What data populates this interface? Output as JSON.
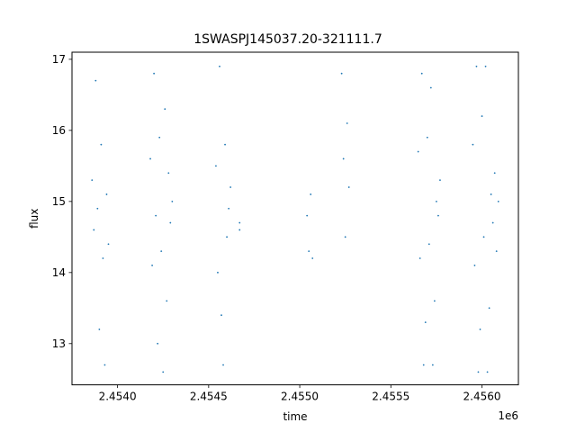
{
  "chart_data": {
    "type": "scatter",
    "title": "1SWASPJ145037.20-321111.7",
    "xlabel": "time",
    "ylabel": "flux",
    "x_offset_label": "1e6",
    "xlim": [
      2.45375,
      2.4562
    ],
    "ylim": [
      12.42,
      17.1
    ],
    "xticks": [
      2.454,
      2.4545,
      2.455,
      2.4555,
      2.456
    ],
    "xtick_labels": [
      "2.4540",
      "2.4545",
      "2.4550",
      "2.4555",
      "2.4560"
    ],
    "yticks": [
      13,
      14,
      15,
      16,
      17
    ],
    "ytick_labels": [
      "13",
      "14",
      "15",
      "16",
      "17"
    ],
    "grid": false,
    "legend": "none",
    "marker_color": "#1f77b4",
    "series": [
      {
        "points": [
          [
            2.45386,
            15.3
          ],
          [
            2.45387,
            14.6
          ],
          [
            2.45388,
            16.7
          ],
          [
            2.45389,
            14.9
          ],
          [
            2.4539,
            13.2
          ],
          [
            2.45391,
            15.8
          ],
          [
            2.45392,
            14.2
          ],
          [
            2.45393,
            12.7
          ],
          [
            2.45394,
            15.1
          ],
          [
            2.45395,
            14.4
          ],
          [
            2.45418,
            15.6
          ],
          [
            2.45419,
            14.1
          ],
          [
            2.4542,
            16.8
          ],
          [
            2.45421,
            14.8
          ],
          [
            2.45422,
            13.0
          ],
          [
            2.45423,
            15.9
          ],
          [
            2.45424,
            14.3
          ],
          [
            2.45425,
            12.6
          ],
          [
            2.45426,
            16.3
          ],
          [
            2.45427,
            13.6
          ],
          [
            2.45428,
            15.4
          ],
          [
            2.45429,
            14.7
          ],
          [
            2.4543,
            15.0
          ],
          [
            2.45454,
            15.5
          ],
          [
            2.45455,
            14.0
          ],
          [
            2.45456,
            16.9
          ],
          [
            2.45457,
            13.4
          ],
          [
            2.45458,
            12.7
          ],
          [
            2.45459,
            15.8
          ],
          [
            2.4546,
            14.5
          ],
          [
            2.45461,
            14.9
          ],
          [
            2.45462,
            15.2
          ],
          [
            2.45467,
            14.7
          ],
          [
            2.45467,
            14.6
          ],
          [
            2.45504,
            14.8
          ],
          [
            2.45505,
            14.3
          ],
          [
            2.45506,
            15.1
          ],
          [
            2.45507,
            14.2
          ],
          [
            2.45523,
            16.8
          ],
          [
            2.45524,
            15.6
          ],
          [
            2.45525,
            14.5
          ],
          [
            2.45526,
            16.1
          ],
          [
            2.45527,
            15.2
          ],
          [
            2.45565,
            15.7
          ],
          [
            2.45566,
            14.2
          ],
          [
            2.45567,
            16.8
          ],
          [
            2.45568,
            12.7
          ],
          [
            2.45569,
            13.3
          ],
          [
            2.4557,
            15.9
          ],
          [
            2.45571,
            14.4
          ],
          [
            2.45572,
            16.6
          ],
          [
            2.45573,
            12.7
          ],
          [
            2.45574,
            13.6
          ],
          [
            2.45575,
            15.0
          ],
          [
            2.45576,
            14.8
          ],
          [
            2.45577,
            15.3
          ],
          [
            2.45595,
            15.8
          ],
          [
            2.45596,
            14.1
          ],
          [
            2.45597,
            16.9
          ],
          [
            2.45598,
            12.6
          ],
          [
            2.45599,
            13.2
          ],
          [
            2.456,
            16.2
          ],
          [
            2.45601,
            14.5
          ],
          [
            2.45602,
            16.9
          ],
          [
            2.45603,
            12.6
          ],
          [
            2.45604,
            13.5
          ],
          [
            2.45605,
            15.1
          ],
          [
            2.45606,
            14.7
          ],
          [
            2.45607,
            15.4
          ],
          [
            2.45608,
            14.3
          ],
          [
            2.45609,
            15.0
          ]
        ]
      }
    ]
  }
}
